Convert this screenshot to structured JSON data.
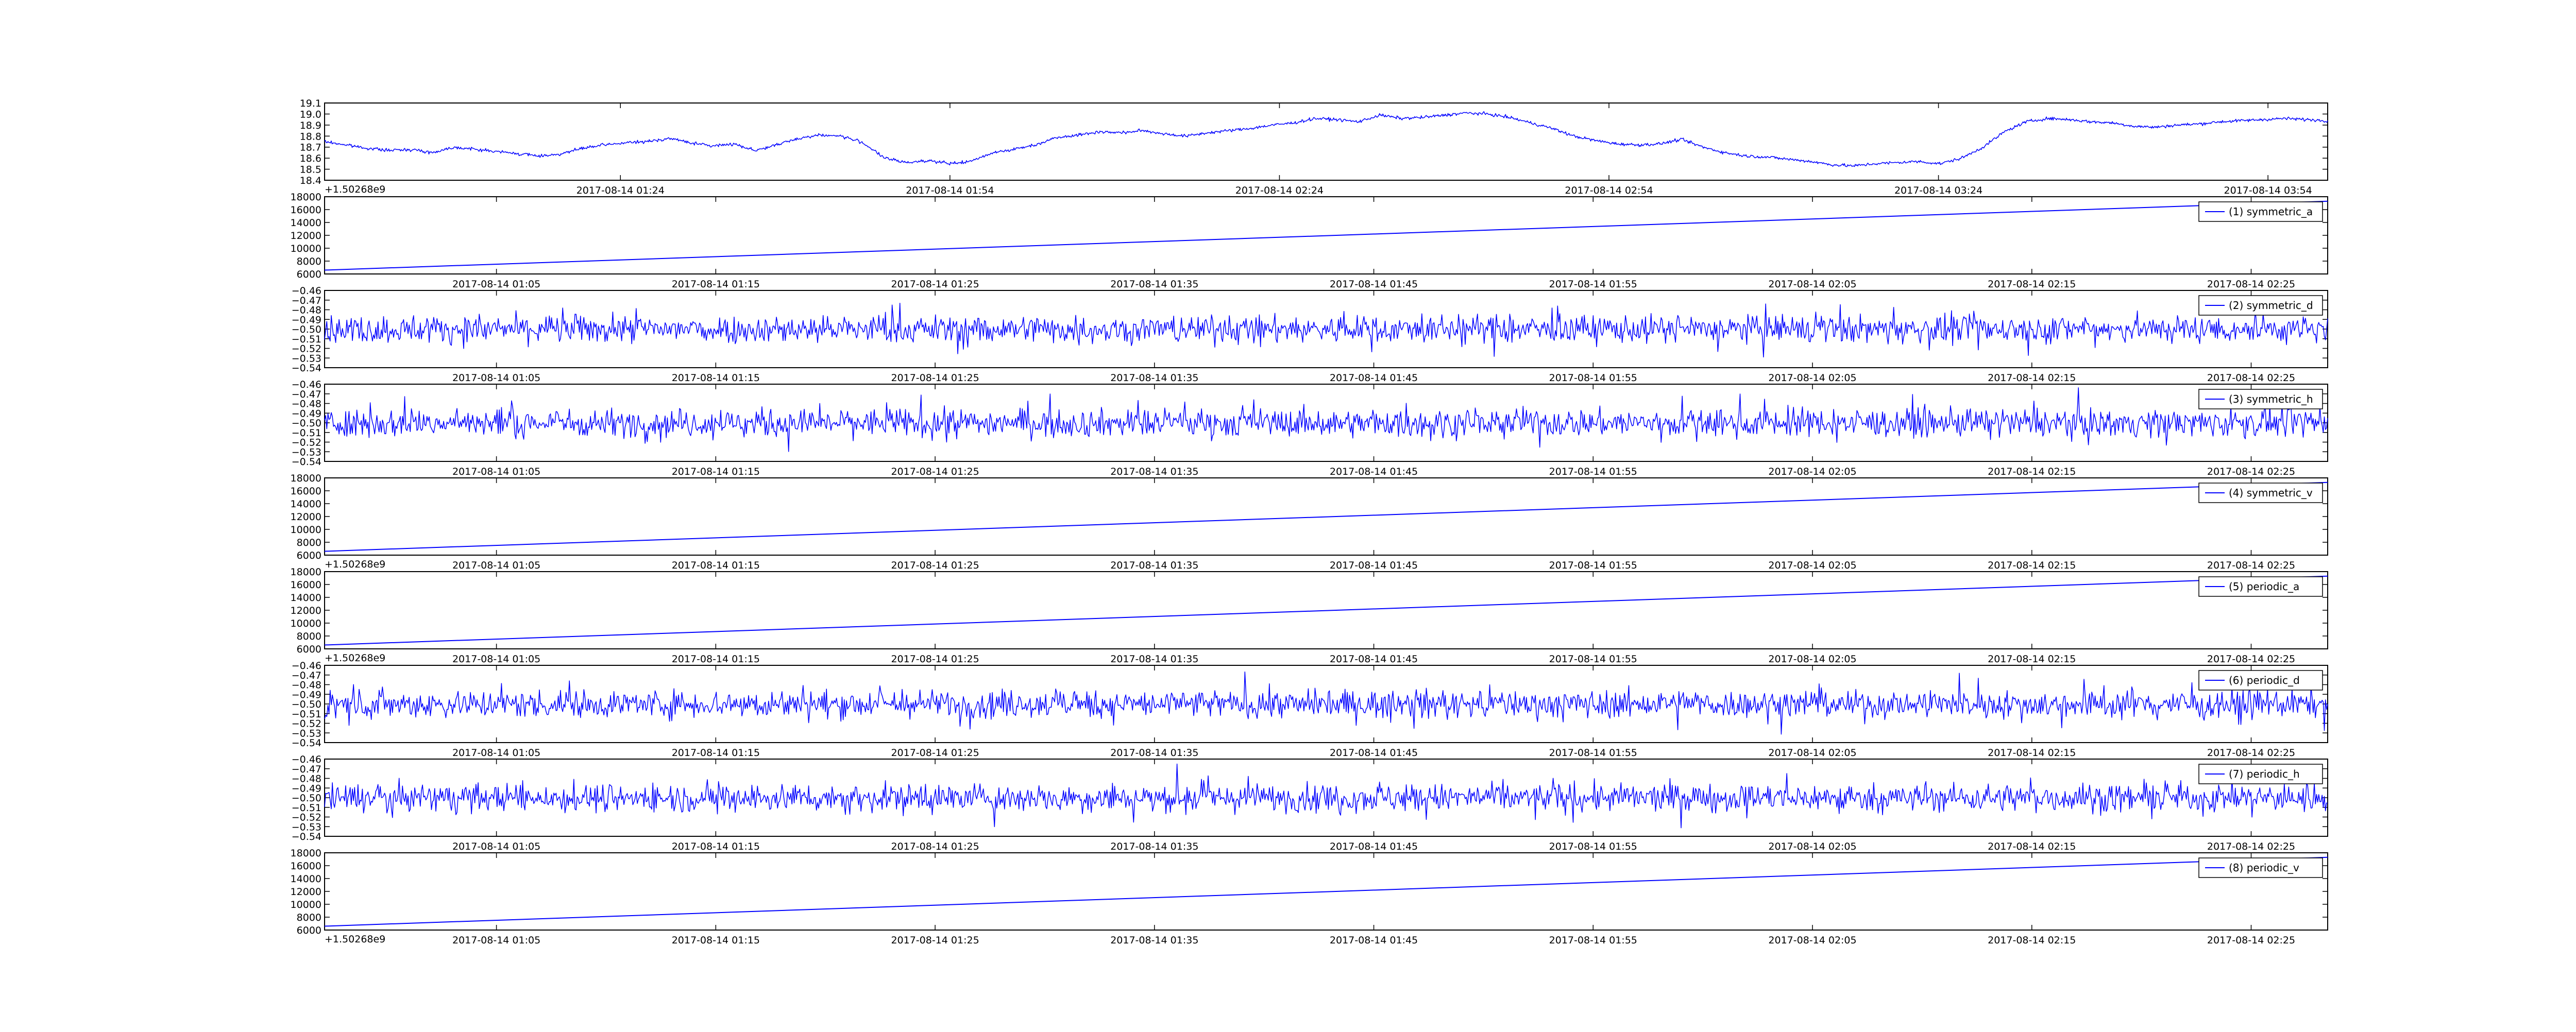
{
  "figure": {
    "background": "#ffffff",
    "line_color": "#0000ff",
    "axes_color": "#000000"
  },
  "chart_data": [
    {
      "type": "line",
      "x_kind": "datetime",
      "x_offset_label": "+1.50268e9",
      "xticks": [
        "2017-08-14 01:24",
        "2017-08-14 01:54",
        "2017-08-14 02:24",
        "2017-08-14 02:54",
        "2017-08-14 03:24",
        "2017-08-14 03:54"
      ],
      "yticks": [
        "18.4",
        "18.5",
        "18.6",
        "18.7",
        "18.8",
        "18.9",
        "19.0",
        "19.1"
      ],
      "ylim": [
        18.4,
        19.1
      ],
      "series": [
        {
          "pattern": "noisy",
          "values": [
            18.75,
            18.72,
            18.69,
            18.67,
            18.68,
            18.65,
            18.7,
            18.68,
            18.66,
            18.64,
            18.62,
            18.64,
            18.69,
            18.72,
            18.74,
            18.75,
            18.78,
            18.74,
            18.71,
            18.73,
            18.67,
            18.72,
            18.78,
            18.81,
            18.8,
            18.74,
            18.6,
            18.56,
            18.58,
            18.55,
            18.57,
            18.65,
            18.68,
            18.72,
            18.79,
            18.81,
            18.84,
            18.83,
            18.85,
            18.82,
            18.8,
            18.83,
            18.85,
            18.87,
            18.9,
            18.92,
            18.96,
            18.95,
            18.93,
            18.99,
            18.96,
            18.97,
            18.99,
            19.01,
            19.0,
            18.97,
            18.92,
            18.87,
            18.8,
            18.76,
            18.73,
            18.72,
            18.73,
            18.77,
            18.7,
            18.65,
            18.62,
            18.61,
            18.59,
            18.57,
            18.54,
            18.53,
            18.55,
            18.56,
            18.57,
            18.55,
            18.6,
            18.7,
            18.84,
            18.93,
            18.96,
            18.95,
            18.93,
            18.92,
            18.89,
            18.88,
            18.9,
            18.91,
            18.93,
            18.94,
            18.95,
            18.96,
            18.95,
            18.94
          ],
          "noise": 0.007
        }
      ]
    },
    {
      "type": "line",
      "x_kind": "datetime",
      "xticks": [
        "2017-08-14 01:05",
        "2017-08-14 01:15",
        "2017-08-14 01:25",
        "2017-08-14 01:35",
        "2017-08-14 01:45",
        "2017-08-14 01:55",
        "2017-08-14 02:05",
        "2017-08-14 02:15",
        "2017-08-14 02:25"
      ],
      "yticks": [
        "6000",
        "8000",
        "10000",
        "12000",
        "14000",
        "16000",
        "18000"
      ],
      "ylim": [
        6000,
        18000
      ],
      "legend": "top-right",
      "series": [
        {
          "name": "(1) symmetric_a",
          "pattern": "linear",
          "start": 6600,
          "end": 17300
        }
      ]
    },
    {
      "type": "line",
      "x_kind": "datetime",
      "xticks": [
        "2017-08-14 01:05",
        "2017-08-14 01:15",
        "2017-08-14 01:25",
        "2017-08-14 01:35",
        "2017-08-14 01:45",
        "2017-08-14 01:55",
        "2017-08-14 02:05",
        "2017-08-14 02:15",
        "2017-08-14 02:25"
      ],
      "yticks": [
        "−0.54",
        "−0.53",
        "−0.52",
        "−0.51",
        "−0.50",
        "−0.49",
        "−0.48",
        "−0.47",
        "−0.46"
      ],
      "ylim": [
        -0.54,
        -0.46
      ],
      "legend": "top-right",
      "series": [
        {
          "name": "(2) symmetric_d",
          "pattern": "noise",
          "mean": -0.5,
          "sd": 0.007
        }
      ]
    },
    {
      "type": "line",
      "x_kind": "datetime",
      "xticks": [
        "2017-08-14 01:05",
        "2017-08-14 01:15",
        "2017-08-14 01:25",
        "2017-08-14 01:35",
        "2017-08-14 01:45",
        "2017-08-14 01:55",
        "2017-08-14 02:05",
        "2017-08-14 02:15",
        "2017-08-14 02:25"
      ],
      "yticks": [
        "−0.54",
        "−0.53",
        "−0.52",
        "−0.51",
        "−0.50",
        "−0.49",
        "−0.48",
        "−0.47",
        "−0.46"
      ],
      "ylim": [
        -0.54,
        -0.46
      ],
      "legend": "top-right",
      "series": [
        {
          "name": "(3) symmetric_h",
          "pattern": "noise",
          "mean": -0.5,
          "sd": 0.007
        }
      ]
    },
    {
      "type": "line",
      "x_kind": "datetime",
      "x_offset_label": "+1.50268e9",
      "xticks": [
        "2017-08-14 01:05",
        "2017-08-14 01:15",
        "2017-08-14 01:25",
        "2017-08-14 01:35",
        "2017-08-14 01:45",
        "2017-08-14 01:55",
        "2017-08-14 02:05",
        "2017-08-14 02:15",
        "2017-08-14 02:25"
      ],
      "yticks": [
        "6000",
        "8000",
        "10000",
        "12000",
        "14000",
        "16000",
        "18000"
      ],
      "ylim": [
        6000,
        18000
      ],
      "legend": "top-right",
      "series": [
        {
          "name": "(4) symmetric_v",
          "pattern": "linear",
          "start": 6600,
          "end": 17300
        }
      ]
    },
    {
      "type": "line",
      "x_kind": "datetime",
      "x_offset_label": "+1.50268e9",
      "xticks": [
        "2017-08-14 01:05",
        "2017-08-14 01:15",
        "2017-08-14 01:25",
        "2017-08-14 01:35",
        "2017-08-14 01:45",
        "2017-08-14 01:55",
        "2017-08-14 02:05",
        "2017-08-14 02:15",
        "2017-08-14 02:25"
      ],
      "yticks": [
        "6000",
        "8000",
        "10000",
        "12000",
        "14000",
        "16000",
        "18000"
      ],
      "ylim": [
        6000,
        18000
      ],
      "legend": "top-right",
      "series": [
        {
          "name": "(5) periodic_a",
          "pattern": "linear",
          "start": 6600,
          "end": 17300
        }
      ]
    },
    {
      "type": "line",
      "x_kind": "datetime",
      "xticks": [
        "2017-08-14 01:05",
        "2017-08-14 01:15",
        "2017-08-14 01:25",
        "2017-08-14 01:35",
        "2017-08-14 01:45",
        "2017-08-14 01:55",
        "2017-08-14 02:05",
        "2017-08-14 02:15",
        "2017-08-14 02:25"
      ],
      "yticks": [
        "−0.54",
        "−0.53",
        "−0.52",
        "−0.51",
        "−0.50",
        "−0.49",
        "−0.48",
        "−0.47",
        "−0.46"
      ],
      "ylim": [
        -0.54,
        -0.46
      ],
      "legend": "top-right",
      "series": [
        {
          "name": "(6) periodic_d",
          "pattern": "noise",
          "mean": -0.5,
          "sd": 0.007
        }
      ]
    },
    {
      "type": "line",
      "x_kind": "datetime",
      "xticks": [
        "2017-08-14 01:05",
        "2017-08-14 01:15",
        "2017-08-14 01:25",
        "2017-08-14 01:35",
        "2017-08-14 01:45",
        "2017-08-14 01:55",
        "2017-08-14 02:05",
        "2017-08-14 02:15",
        "2017-08-14 02:25"
      ],
      "yticks": [
        "−0.54",
        "−0.53",
        "−0.52",
        "−0.51",
        "−0.50",
        "−0.49",
        "−0.48",
        "−0.47",
        "−0.46"
      ],
      "ylim": [
        -0.54,
        -0.46
      ],
      "legend": "top-right",
      "series": [
        {
          "name": "(7) periodic_h",
          "pattern": "noise",
          "mean": -0.5,
          "sd": 0.007
        }
      ]
    },
    {
      "type": "line",
      "x_kind": "datetime",
      "x_offset_label": "+1.50268e9",
      "xticks": [
        "2017-08-14 01:05",
        "2017-08-14 01:15",
        "2017-08-14 01:25",
        "2017-08-14 01:35",
        "2017-08-14 01:45",
        "2017-08-14 01:55",
        "2017-08-14 02:05",
        "2017-08-14 02:15",
        "2017-08-14 02:25"
      ],
      "yticks": [
        "6000",
        "8000",
        "10000",
        "12000",
        "14000",
        "16000",
        "18000"
      ],
      "ylim": [
        6000,
        18000
      ],
      "legend": "top-right",
      "series": [
        {
          "name": "(8) periodic_v",
          "pattern": "linear",
          "start": 6600,
          "end": 17300
        }
      ]
    }
  ]
}
